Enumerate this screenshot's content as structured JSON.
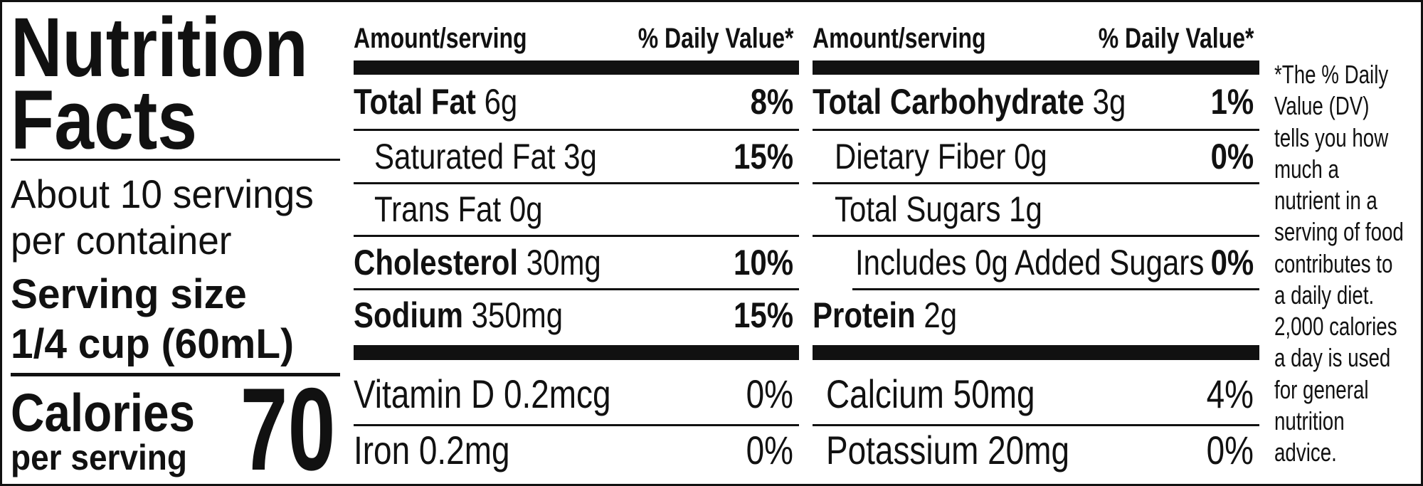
{
  "left": {
    "title_line1": "Nutrition",
    "title_line2": "Facts",
    "servings_line1": "About 10 servings",
    "servings_line2": "per container",
    "serving_size_label": "Serving size",
    "serving_size_value": "1/4 cup (60mL)",
    "calories_label": "Calories",
    "calories_sublabel": "per serving",
    "calories_value": 70
  },
  "columns": [
    {
      "header_amount": "Amount/serving",
      "header_dv": "% Daily Value*",
      "rows": [
        {
          "name": "Total Fat",
          "amount": "6g",
          "dv": "8%"
        },
        {
          "name": "Saturated Fat",
          "amount": "3g",
          "dv": "15%"
        },
        {
          "name": "Trans Fat",
          "amount": "0g"
        },
        {
          "name": "Cholesterol",
          "amount": "30mg",
          "dv": "10%"
        },
        {
          "name": "Sodium",
          "amount": "350mg",
          "dv": "15%"
        }
      ]
    },
    {
      "header_amount": "Amount/serving",
      "header_dv": "% Daily Value*",
      "rows": [
        {
          "name": "Total Carbohydrate",
          "amount": "3g",
          "dv": "1%"
        },
        {
          "name": "Dietary Fiber",
          "amount": "0g",
          "dv": "0%"
        },
        {
          "name": "Total Sugars",
          "amount": "1g"
        },
        {
          "name": "Includes 0g Added Sugars",
          "dv": "0%"
        },
        {
          "name": "Protein",
          "amount": "2g"
        }
      ]
    }
  ],
  "micronutrients": [
    [
      {
        "name": "Vitamin D 0.2mcg",
        "dv": "0%"
      },
      {
        "name": "Iron 0.2mg",
        "dv": "0%"
      }
    ],
    [
      {
        "name": "Calcium 50mg",
        "dv": "4%"
      },
      {
        "name": "Potassium 20mg",
        "dv": "0%"
      }
    ]
  ],
  "footnote_lines": [
    "*The % Daily",
    "Value (DV)",
    "tells you how",
    "much a",
    "nutrient in a",
    "serving of food",
    "contributes to",
    "a daily diet.",
    "2,000 calories",
    "a day is used",
    "for general",
    "nutrition",
    "advice."
  ]
}
